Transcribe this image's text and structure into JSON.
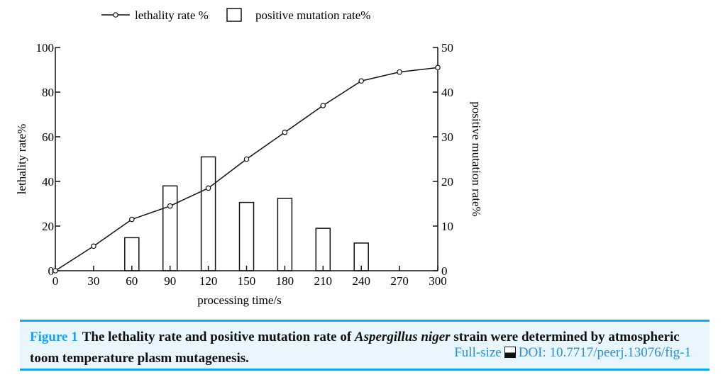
{
  "chart_data": {
    "type": "bar+line",
    "categories": [
      0,
      30,
      60,
      90,
      120,
      150,
      180,
      210,
      240,
      270,
      300
    ],
    "xlabel": "processing time/s",
    "ylabel_left": "lethality rate%",
    "ylabel_right": "positive mutation rate%",
    "ylim_left": [
      0,
      100
    ],
    "ylim_right": [
      0,
      50
    ],
    "yticks_left": [
      0,
      20,
      40,
      60,
      80,
      100
    ],
    "yticks_right": [
      0,
      10,
      20,
      30,
      40,
      50
    ],
    "grid": false,
    "legend_placement": "top",
    "series": [
      {
        "name": "lethality rate %",
        "type": "line",
        "axis": "left",
        "x": [
          0,
          30,
          60,
          90,
          120,
          150,
          180,
          210,
          240,
          270,
          300
        ],
        "values": [
          0,
          11,
          23,
          29,
          37,
          50,
          62,
          74,
          85,
          89,
          91
        ]
      },
      {
        "name": "positive mutation rate%",
        "type": "bar",
        "axis": "right",
        "x": [
          60,
          90,
          120,
          150,
          180,
          210,
          240
        ],
        "values": [
          7.4,
          19,
          25.5,
          15.3,
          16.2,
          9.5,
          6.2
        ]
      }
    ]
  },
  "caption": {
    "figure_label": "Figure 1",
    "text_before": "The lethality rate and positive mutation rate of ",
    "species": "Aspergillus niger",
    "text_after": " strain were determined by atmospheric toom temperature plasm mutagenesis.",
    "fullsize_link": "Full-size",
    "image_icon": "image-icon",
    "doi": "DOI: 10.7717/peerj.13076/fig-1"
  },
  "colors": {
    "accent": "#1aa3e8",
    "caption_bg": "#eaf6fd",
    "link": "#2a8fc9"
  }
}
